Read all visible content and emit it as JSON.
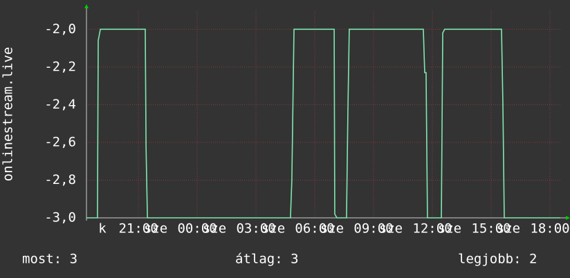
{
  "chart_data": {
    "type": "line",
    "ylabel": "onlinestream.live",
    "x": [
      18.35,
      18.91,
      18.95,
      19.06,
      21.35,
      21.39,
      21.46,
      28.76,
      28.83,
      28.94,
      30.99,
      31.02,
      31.13,
      31.62,
      31.69,
      31.76,
      35.54,
      35.61,
      35.68,
      35.75,
      36.46,
      36.53,
      36.63,
      39.53,
      39.6,
      39.67,
      42.53
    ],
    "series": [
      {
        "name": "onlinestream.live",
        "color": "#80e8b0",
        "values": [
          -3.0,
          -3.0,
          -2.06,
          -2.0,
          -2.0,
          -2.62,
          -3.0,
          -3.0,
          -2.8,
          -2.0,
          -2.0,
          -2.98,
          -3.0,
          -3.0,
          -2.44,
          -2.0,
          -2.0,
          -2.23,
          -2.23,
          -3.0,
          -3.0,
          -2.02,
          -2.0,
          -2.0,
          -2.4,
          -3.0,
          -3.0
        ]
      }
    ],
    "xlim": [
      18.35,
      42.53
    ],
    "xticks": [
      {
        "value": 21,
        "label": "21:00"
      },
      {
        "value": 24,
        "label": "00:00"
      },
      {
        "value": 27,
        "label": "03:00"
      },
      {
        "value": 30,
        "label": "06:00"
      },
      {
        "value": 33,
        "label": "09:00"
      },
      {
        "value": 36,
        "label": "12:00"
      },
      {
        "value": 39,
        "label": "15:00"
      },
      {
        "value": 42,
        "label": "18:00"
      }
    ],
    "day_labels": [
      {
        "value": 19.16,
        "label": "k"
      },
      {
        "value": 21.88,
        "label": "sze"
      },
      {
        "value": 24.88,
        "label": "sze"
      },
      {
        "value": 27.88,
        "label": "sze"
      },
      {
        "value": 30.88,
        "label": "sze"
      },
      {
        "value": 33.88,
        "label": "sze"
      },
      {
        "value": 36.88,
        "label": "sze"
      },
      {
        "value": 39.88,
        "label": "sze"
      }
    ],
    "ylim": [
      -3.0,
      -1.9
    ],
    "yticks": [
      {
        "value": -3.0,
        "label": "-3,0"
      },
      {
        "value": -2.8,
        "label": "-2,8"
      },
      {
        "value": -2.6,
        "label": "-2,6"
      },
      {
        "value": -2.4,
        "label": "-2,4"
      },
      {
        "value": -2.2,
        "label": "-2,2"
      },
      {
        "value": -2.0,
        "label": "-2,0"
      }
    ],
    "grid": true,
    "stats": [
      "most: 3",
      "átlag: 3",
      "legjobb: 2"
    ]
  }
}
